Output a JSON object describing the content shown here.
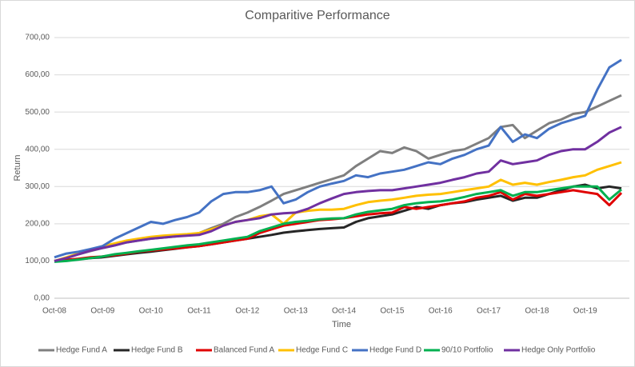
{
  "chart_data": {
    "type": "line",
    "title": "Comparitive Performance",
    "x_label": "Time",
    "y_label": "Return",
    "categories": [
      "Oct-08",
      null,
      null,
      null,
      "Oct-09",
      null,
      null,
      null,
      "Oct-10",
      null,
      null,
      null,
      "Oct-11",
      null,
      null,
      null,
      "Oct-12",
      null,
      null,
      null,
      "Oct-13",
      null,
      null,
      null,
      "Oct-14",
      null,
      null,
      null,
      "Oct-15",
      null,
      null,
      null,
      "Oct-16",
      null,
      null,
      null,
      "Oct-17",
      null,
      null,
      null,
      "Oct-18",
      null,
      null,
      null,
      "Oct-19",
      null,
      null,
      null
    ],
    "ylim": [
      0,
      700
    ],
    "yticks": [
      {
        "value": 0,
        "label": "0,00"
      },
      {
        "value": 100,
        "label": "100,00"
      },
      {
        "value": 200,
        "label": "200,00"
      },
      {
        "value": 300,
        "label": "300,00"
      },
      {
        "value": 400,
        "label": "400,00"
      },
      {
        "value": 500,
        "label": "500,00"
      },
      {
        "value": 600,
        "label": "600,00"
      },
      {
        "value": 700,
        "label": "700,00"
      }
    ],
    "grid": true,
    "legend": "bottom",
    "series": [
      {
        "name": "Hedge Fund A",
        "color": "#7f7f7f",
        "values": [
          100,
          108,
          118,
          127,
          135,
          142,
          150,
          155,
          160,
          163,
          166,
          170,
          175,
          188,
          200,
          218,
          230,
          245,
          262,
          280,
          290,
          300,
          310,
          320,
          330,
          355,
          375,
          395,
          390,
          405,
          395,
          375,
          385,
          395,
          400,
          415,
          430,
          460,
          465,
          430,
          450,
          470,
          480,
          495,
          500,
          515,
          530,
          545
        ]
      },
      {
        "name": "Hedge Fund B",
        "color": "#262626",
        "values": [
          100,
          102,
          105,
          108,
          110,
          114,
          118,
          122,
          125,
          129,
          133,
          137,
          140,
          145,
          150,
          155,
          160,
          165,
          170,
          176,
          180,
          183,
          186,
          188,
          190,
          205,
          215,
          220,
          225,
          235,
          245,
          240,
          250,
          255,
          258,
          265,
          270,
          275,
          262,
          270,
          270,
          280,
          290,
          300,
          305,
          295,
          300,
          295
        ]
      },
      {
        "name": "Balanced Fund A",
        "color": "#e00000",
        "values": [
          100,
          103,
          106,
          110,
          112,
          116,
          120,
          125,
          128,
          131,
          134,
          137,
          140,
          145,
          150,
          155,
          160,
          175,
          185,
          195,
          200,
          205,
          210,
          212,
          215,
          220,
          225,
          228,
          230,
          245,
          240,
          245,
          250,
          255,
          260,
          270,
          275,
          285,
          265,
          280,
          275,
          280,
          285,
          290,
          285,
          280,
          250,
          283
        ]
      },
      {
        "name": "Hedge Fund C",
        "color": "#ffc000",
        "values": [
          100,
          110,
          120,
          130,
          140,
          147,
          155,
          160,
          165,
          168,
          170,
          172,
          175,
          185,
          195,
          205,
          210,
          220,
          225,
          200,
          230,
          235,
          238,
          238,
          240,
          250,
          258,
          262,
          265,
          270,
          275,
          278,
          280,
          285,
          290,
          295,
          300,
          318,
          305,
          310,
          305,
          312,
          318,
          325,
          330,
          345,
          355,
          365
        ]
      },
      {
        "name": "Hedge Fund D",
        "color": "#4472c4",
        "values": [
          110,
          120,
          125,
          132,
          140,
          160,
          175,
          190,
          205,
          200,
          210,
          218,
          230,
          260,
          280,
          285,
          285,
          290,
          300,
          255,
          265,
          285,
          300,
          308,
          315,
          330,
          325,
          335,
          340,
          345,
          355,
          365,
          360,
          375,
          385,
          400,
          410,
          460,
          420,
          440,
          430,
          455,
          470,
          480,
          490,
          560,
          620,
          640
        ]
      },
      {
        "name": "90/10 Portfolio",
        "color": "#00b050",
        "values": [
          98,
          100,
          104,
          108,
          112,
          118,
          122,
          126,
          130,
          134,
          138,
          142,
          145,
          150,
          155,
          160,
          165,
          180,
          190,
          200,
          205,
          208,
          212,
          214,
          215,
          225,
          232,
          236,
          240,
          250,
          255,
          258,
          260,
          265,
          272,
          280,
          285,
          290,
          275,
          285,
          285,
          290,
          295,
          300,
          300,
          300,
          265,
          292
        ]
      },
      {
        "name": "Hedge Only Portfolio",
        "color": "#7030a0",
        "values": [
          100,
          108,
          118,
          128,
          135,
          142,
          150,
          155,
          160,
          163,
          166,
          168,
          170,
          180,
          195,
          205,
          210,
          215,
          225,
          228,
          230,
          240,
          255,
          268,
          280,
          285,
          288,
          290,
          290,
          295,
          300,
          305,
          310,
          318,
          325,
          335,
          340,
          370,
          360,
          365,
          370,
          385,
          395,
          400,
          400,
          420,
          445,
          460
        ]
      }
    ]
  }
}
